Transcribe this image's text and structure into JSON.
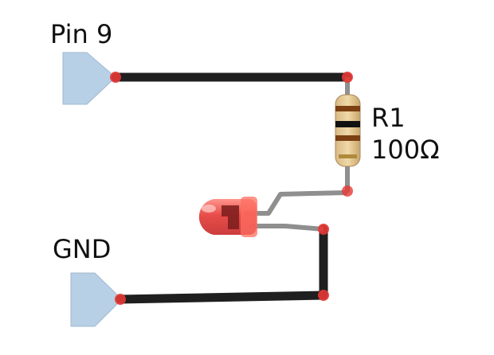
{
  "labels": {
    "pin_top": "Pin 9",
    "pin_bottom": "GND",
    "resistor_name": "R1",
    "resistor_value": "100Ω"
  },
  "components": {
    "resistor_bands": [
      "brown",
      "black",
      "brown",
      "gold"
    ],
    "led_color": "#e53935",
    "wire_color": "#1f1f1f",
    "lead_color": "#8f8f8f",
    "connector_color": "#b8d0e6",
    "joint_color": "#e53935"
  }
}
